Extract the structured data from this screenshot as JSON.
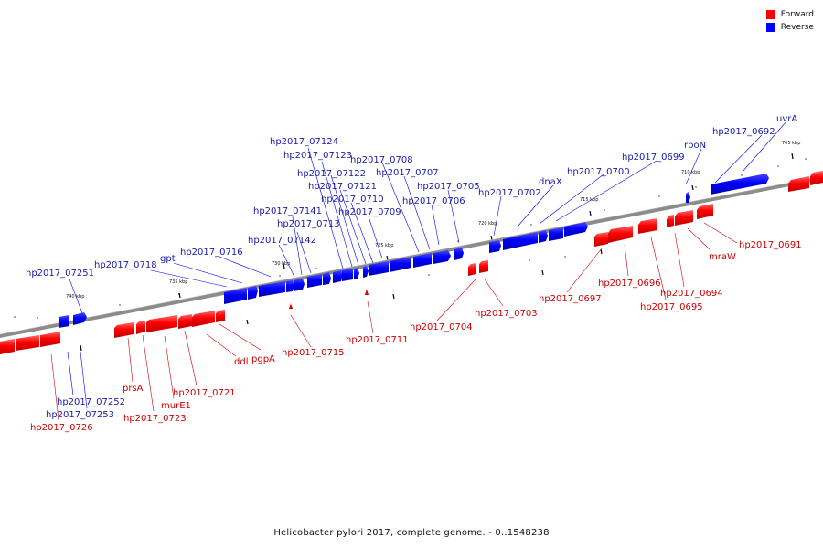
{
  "caption": "Helicobacter pylori 2017, complete genome. - 0..1548238",
  "legend": [
    {
      "label": "Forward",
      "color": "#ff0000"
    },
    {
      "label": "Reverse",
      "color": "#0000ff"
    }
  ],
  "colors": {
    "forward": "#ff0000",
    "reverse": "#0000ff",
    "forward_label": "#cc0000",
    "reverse_label": "#1a1aaa",
    "axis": "#808080"
  },
  "scale": {
    "unit": "kbp",
    "ticks": [
      "740 kbp",
      "735 kbp",
      "730 kbp",
      "725 kbp",
      "720 kbp",
      "715 kbp",
      "710 kbp",
      "705 kbp"
    ]
  },
  "genes": {
    "reverse": [
      "hp2017_07251",
      "hp2017_0718",
      "gpt",
      "hp2017_0716",
      "hp2017_07142",
      "hp2017_0713",
      "hp2017_07141",
      "hp2017_07124",
      "hp2017_07123",
      "hp2017_07122",
      "hp2017_07121",
      "hp2017_0710",
      "hp2017_0709",
      "hp2017_0708",
      "hp2017_0707",
      "hp2017_0706",
      "hp2017_0705",
      "hp2017_0702",
      "dnaX",
      "hp2017_0700",
      "hp2017_0699",
      "rpoN",
      "hp2017_0692",
      "uvrA",
      "hp2017_07252",
      "hp2017_07253"
    ],
    "forward": [
      "hp2017_0726",
      "prsA",
      "hp2017_0723",
      "murE1",
      "hp2017_0721",
      "ddl",
      "pgpA",
      "hp2017_0715",
      "hp2017_0711",
      "hp2017_0704",
      "hp2017_0703",
      "hp2017_0697",
      "hp2017_0696",
      "hp2017_0695",
      "hp2017_0694",
      "mraW",
      "hp2017_0691"
    ]
  }
}
